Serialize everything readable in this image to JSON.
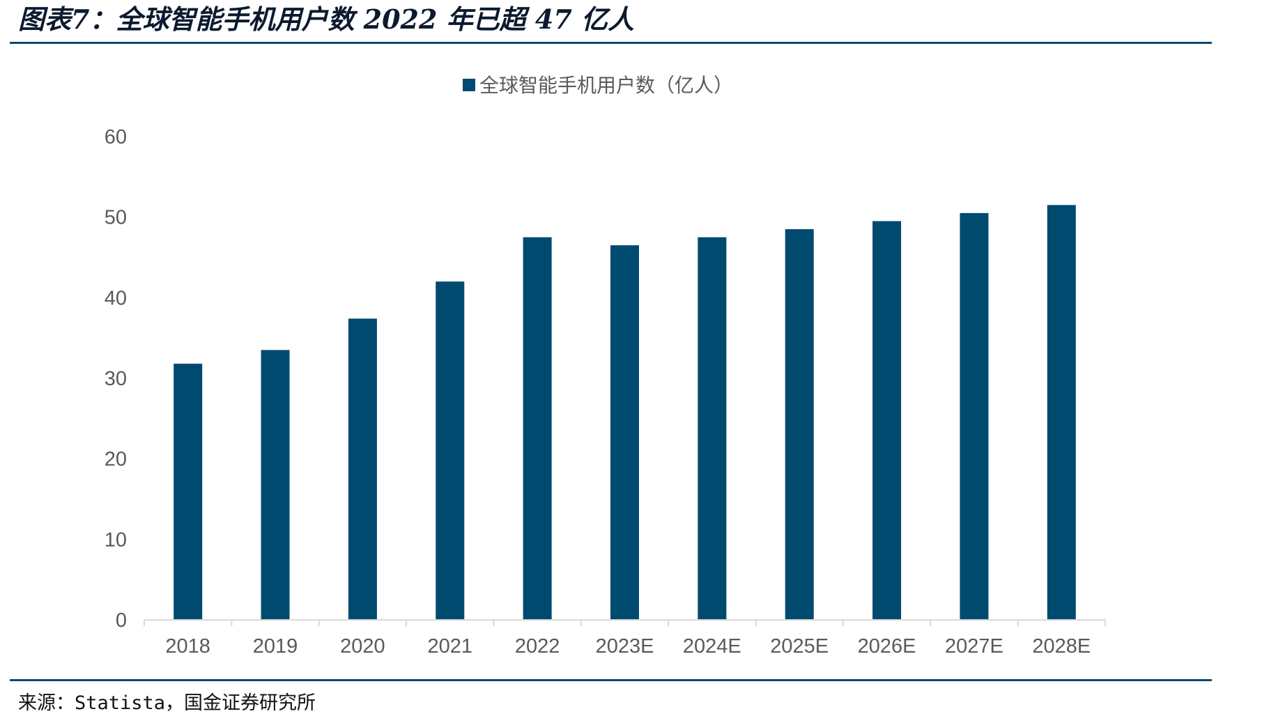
{
  "figure": {
    "title": "图表7：全球智能手机用户数 2022 年已超 47 亿人",
    "source": "来源：Statista，国金证券研究所"
  },
  "chart_data": {
    "type": "bar",
    "categories": [
      "2018",
      "2019",
      "2020",
      "2021",
      "2022",
      "2023E",
      "2024E",
      "2025E",
      "2026E",
      "2027E",
      "2028E"
    ],
    "series": [
      {
        "name": "全球智能手机用户数（亿人）",
        "values": [
          31.8,
          33.5,
          37.4,
          42.0,
          47.5,
          46.5,
          47.5,
          48.5,
          49.5,
          50.5,
          51.5
        ],
        "color": "#004a70"
      }
    ],
    "ylim": [
      0,
      60
    ],
    "yticks": [
      0,
      10,
      20,
      30,
      40,
      50,
      60
    ],
    "grid": false,
    "legend": "top-center"
  }
}
